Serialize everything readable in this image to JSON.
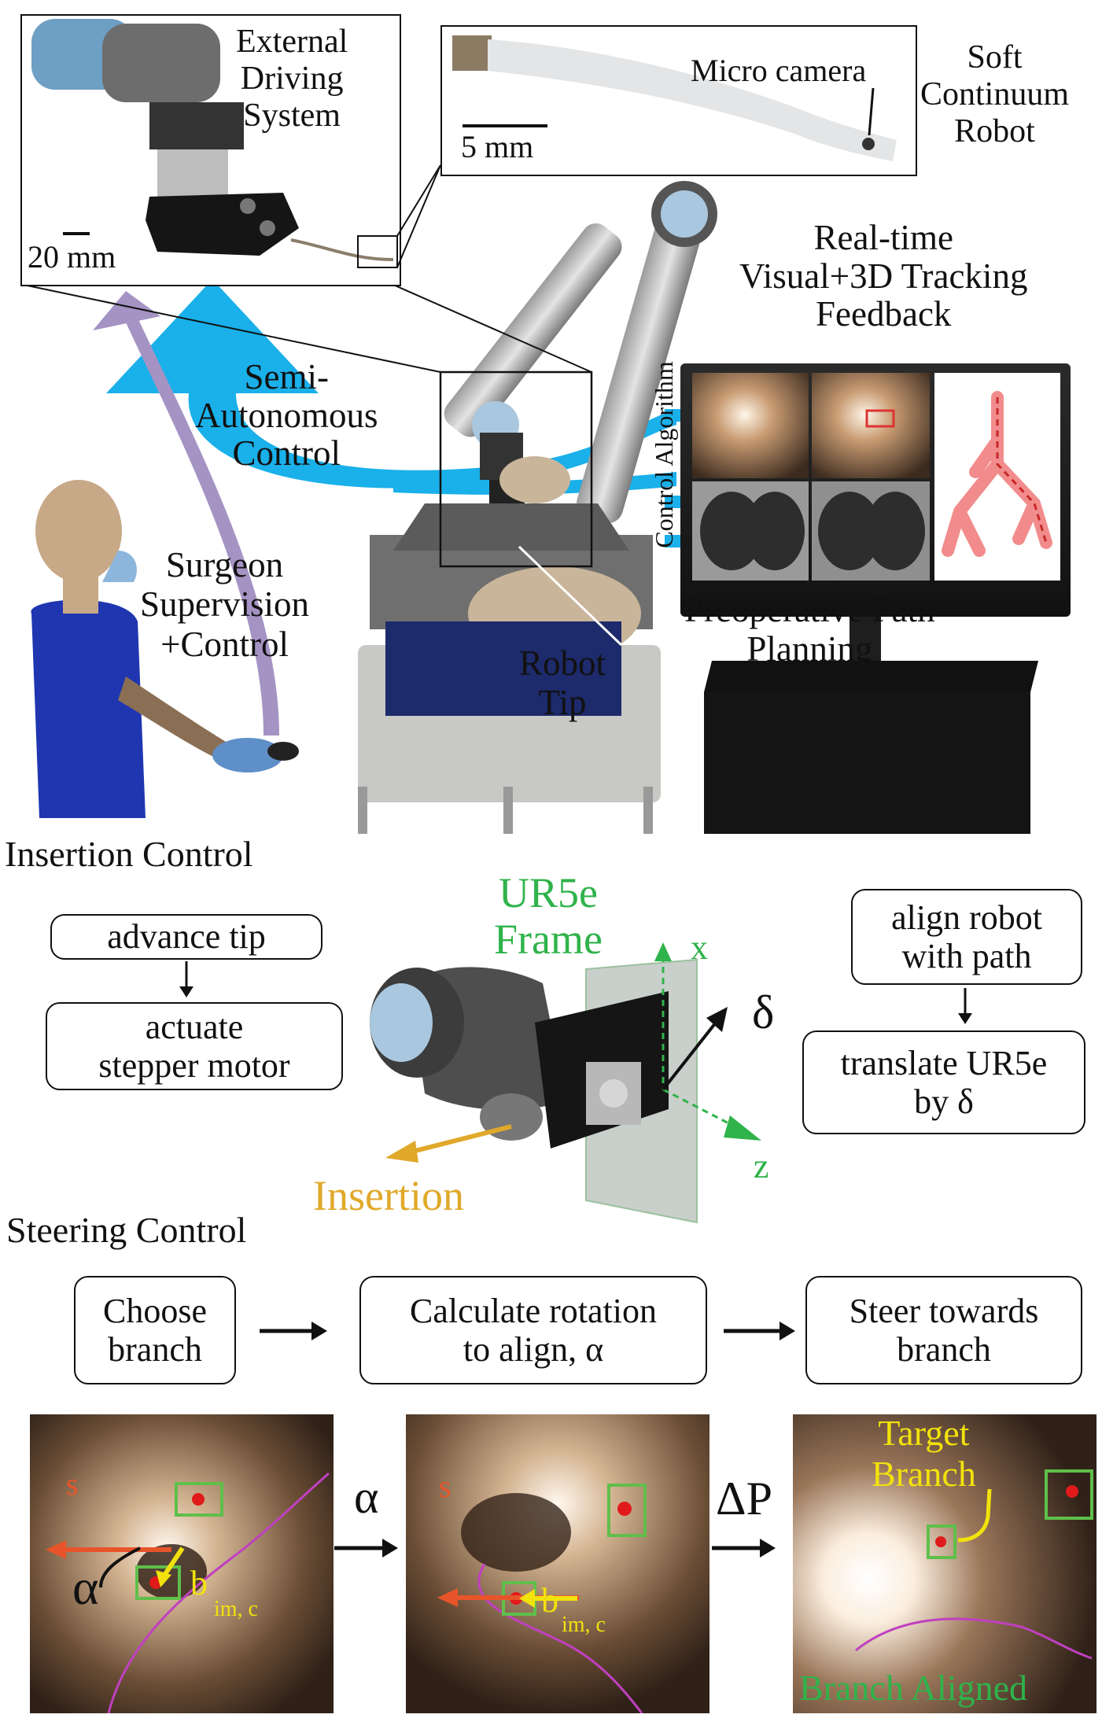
{
  "colors": {
    "blue_arrow": "#1ab0ea",
    "purple_arrow": "#a593c4",
    "frame_green": "#2fb34a",
    "insertion_gold": "#e0a92a",
    "target_yellow": "#f2e20c",
    "direction_orange": "#e8542a",
    "detect_box_green": "#5fbf4a",
    "path_magenta": "#c040c0",
    "airway_pink": "#f28c8c"
  },
  "top": {
    "inset_drive": {
      "title": "External\nDriving\nSystem",
      "scale": "20 mm"
    },
    "inset_robot": {
      "camera_label": "Micro camera",
      "scale": "5 mm"
    },
    "soft_robot_label": "Soft\nContinuum\nRobot",
    "tracking_label": "Real-time\nVisual+3D Tracking\nFeedback",
    "control_algorithm": "Control Algorithm",
    "semi_autonomous": "Semi-\nAutonomous\nControl",
    "surgeon": "Surgeon\nSupervision\n+Control",
    "robot_tip": "Robot\nTip",
    "preop": "Preoperative Path\nPlanning"
  },
  "insertion": {
    "section_title": "Insertion Control",
    "box1": "advance tip",
    "box2": "actuate\nstepper motor",
    "frame_label": "UR5e\nFrame",
    "axis_x": "x",
    "axis_z": "z",
    "delta": "δ",
    "insertion_label": "Insertion",
    "right_box1": "align robot\nwith path",
    "right_box2": "translate UR5e\nby  δ"
  },
  "steering": {
    "section_title": "Steering Control",
    "step1": "Choose\nbranch",
    "step2": "Calculate rotation\nto align, α",
    "step3": "Steer towards\nbranch",
    "img1": {
      "s_label": "s",
      "alpha": "α",
      "b_label": "b",
      "b_sub": "im, c"
    },
    "between1": "α",
    "img2": {
      "s_label": "s",
      "b_label": "b",
      "b_sub": "im, c"
    },
    "between2": "ΔP",
    "img3": {
      "target": "Target\nBranch",
      "aligned": "Branch Aligned"
    }
  }
}
